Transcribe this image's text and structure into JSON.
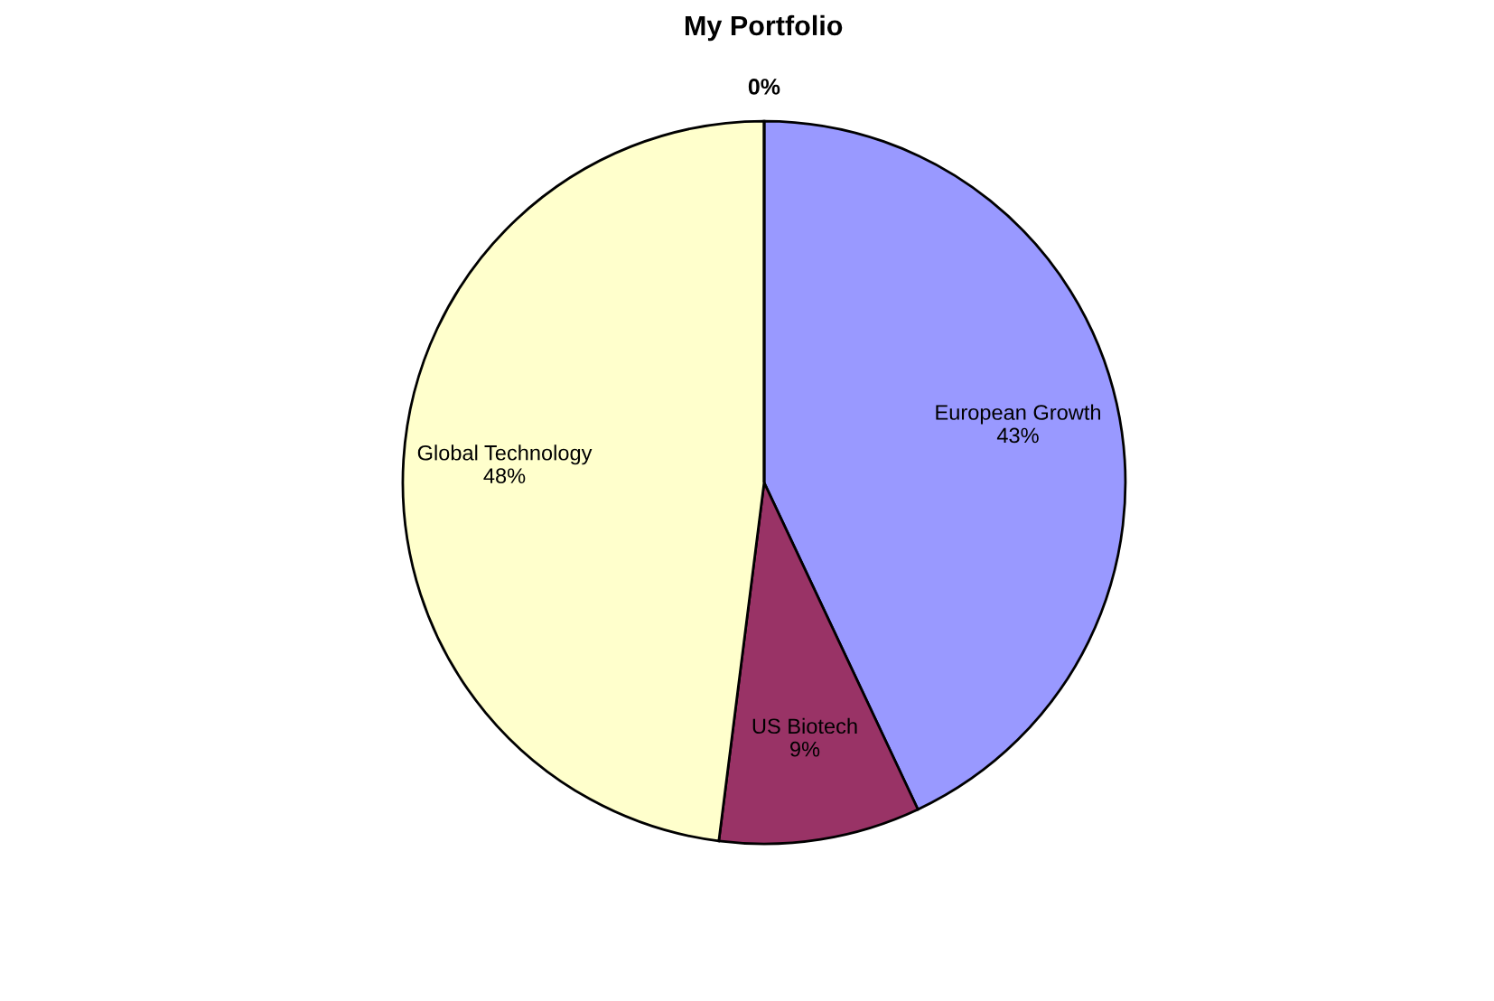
{
  "chart_data": {
    "type": "pie",
    "title": "My Portfolio",
    "categories": [
      "European Growth",
      "US Biotech",
      "Global Technology",
      null
    ],
    "values": [
      43,
      9,
      48,
      0
    ],
    "colors": [
      "#9999ff",
      "#993366",
      "#ffffcc",
      "#ccffff"
    ],
    "value_labels": [
      "43%",
      "9%",
      "48%",
      "0%"
    ]
  }
}
